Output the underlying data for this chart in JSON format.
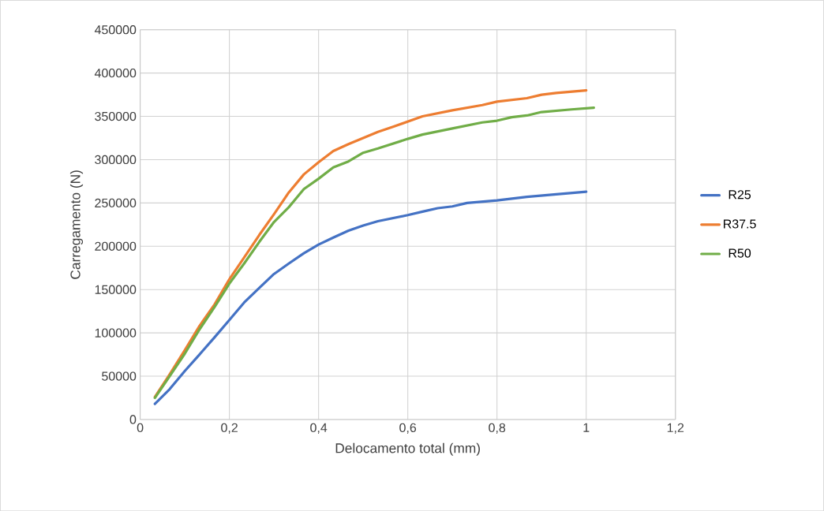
{
  "chart_data": {
    "type": "line",
    "xlabel": "Delocamento total (mm)",
    "ylabel": "Carregamento (N)",
    "xlim": [
      0,
      1.2
    ],
    "xticks": [
      {
        "value": 0,
        "label": "0"
      },
      {
        "value": 0.2,
        "label": "0,2"
      },
      {
        "value": 0.4,
        "label": "0,4"
      },
      {
        "value": 0.6,
        "label": "0,6"
      },
      {
        "value": 0.8,
        "label": "0,8"
      },
      {
        "value": 1,
        "label": "1"
      },
      {
        "value": 1.2,
        "label": "1,2"
      }
    ],
    "ylim": [
      0,
      450000
    ],
    "yticks": [
      0,
      50000,
      100000,
      150000,
      200000,
      250000,
      300000,
      350000,
      400000,
      450000
    ],
    "grid": true,
    "legend": "right",
    "line_style": "solid",
    "series": [
      {
        "name": "R25",
        "color": "#4472c4",
        "x": [
          0.033,
          0.066,
          0.1,
          0.133,
          0.167,
          0.2,
          0.233,
          0.267,
          0.3,
          0.333,
          0.367,
          0.4,
          0.433,
          0.467,
          0.5,
          0.533,
          0.6,
          0.633,
          0.667,
          0.7,
          0.733,
          0.8,
          0.867,
          0.933,
          1.0
        ],
        "values": [
          18000,
          35000,
          56000,
          75000,
          95000,
          115000,
          135000,
          152000,
          168000,
          180000,
          192000,
          202000,
          210000,
          218000,
          224000,
          229000,
          236000,
          240000,
          244000,
          246000,
          250000,
          253000,
          257000,
          260000,
          263000
        ]
      },
      {
        "name": "R37.5",
        "color": "#ed7d31",
        "x": [
          0.033,
          0.066,
          0.1,
          0.133,
          0.167,
          0.2,
          0.233,
          0.267,
          0.3,
          0.333,
          0.367,
          0.4,
          0.433,
          0.467,
          0.5,
          0.533,
          0.567,
          0.6,
          0.633,
          0.7,
          0.767,
          0.8,
          0.867,
          0.9,
          0.933,
          1.0
        ],
        "values": [
          26000,
          52000,
          80000,
          108000,
          133000,
          162000,
          187000,
          213000,
          237000,
          262000,
          283000,
          297000,
          310000,
          318000,
          325000,
          332000,
          338000,
          344000,
          350000,
          357000,
          363000,
          367000,
          371000,
          375000,
          377000,
          380000
        ]
      },
      {
        "name": "R50",
        "color": "#70ad47",
        "x": [
          0.033,
          0.066,
          0.1,
          0.133,
          0.167,
          0.2,
          0.233,
          0.267,
          0.3,
          0.333,
          0.367,
          0.4,
          0.433,
          0.467,
          0.5,
          0.533,
          0.6,
          0.633,
          0.7,
          0.767,
          0.8,
          0.833,
          0.867,
          0.9,
          0.967,
          1.017
        ],
        "values": [
          25000,
          50000,
          76000,
          104000,
          130000,
          157000,
          180000,
          205000,
          228000,
          245000,
          266000,
          278000,
          291000,
          298000,
          308000,
          313000,
          324000,
          329000,
          336000,
          343000,
          345000,
          349000,
          351000,
          355000,
          358000,
          360000
        ]
      }
    ]
  }
}
